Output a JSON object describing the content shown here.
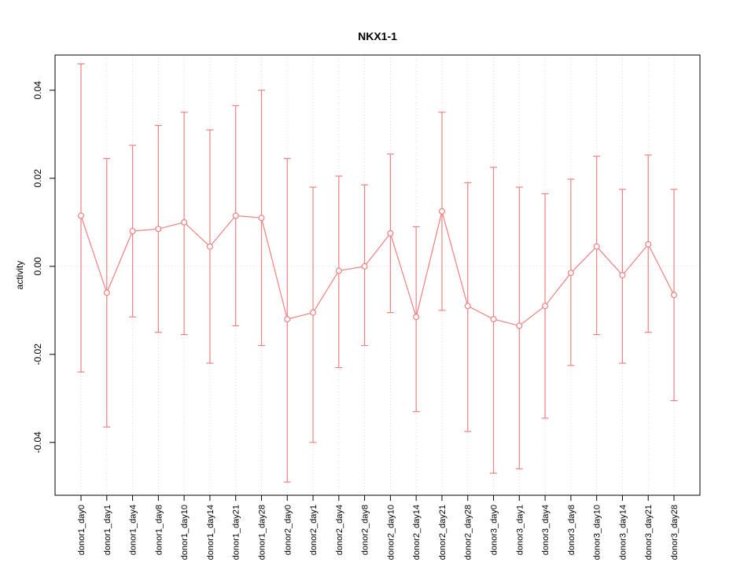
{
  "chart_data": {
    "type": "line",
    "title": "NKX1-1",
    "xlabel": "",
    "ylabel": "activity",
    "ylim": [
      -0.052,
      0.048
    ],
    "yticks": [
      -0.04,
      -0.02,
      0.0,
      0.02,
      0.04
    ],
    "legend": "none",
    "grid": "dotted vertical gridline at each category; dotted horizontal line at y=0",
    "marker": "open-circle",
    "error_bars": true,
    "colors": {
      "series": "#f08080",
      "grid": "#d9d9d9",
      "axis": "#000000",
      "background": "#ffffff"
    },
    "categories": [
      "donor1_day0",
      "donor1_day1",
      "donor1_day4",
      "donor1_day8",
      "donor1_day10",
      "donor1_day14",
      "donor1_day21",
      "donor1_day28",
      "donor2_day0",
      "donor2_day1",
      "donor2_day4",
      "donor2_day8",
      "donor2_day10",
      "donor2_day14",
      "donor2_day21",
      "donor2_day28",
      "donor3_day0",
      "donor3_day1",
      "donor3_day4",
      "donor3_day8",
      "donor3_day10",
      "donor3_day14",
      "donor3_day21",
      "donor3_day28"
    ],
    "series": [
      {
        "name": "activity",
        "means": [
          0.0115,
          -0.006,
          0.008,
          0.0085,
          0.01,
          0.0045,
          0.0115,
          0.011,
          -0.012,
          -0.0105,
          -0.001,
          0.0,
          0.0075,
          -0.0115,
          0.0125,
          -0.009,
          -0.012,
          -0.0135,
          -0.009,
          -0.0015,
          0.0045,
          -0.002,
          0.005,
          -0.0065
        ],
        "upper": [
          0.046,
          0.0245,
          0.0275,
          0.032,
          0.035,
          0.031,
          0.0365,
          0.04,
          0.0245,
          0.018,
          0.0205,
          0.0185,
          0.0255,
          0.009,
          0.035,
          0.019,
          0.0225,
          0.018,
          0.0165,
          0.0198,
          0.025,
          0.0175,
          0.0253,
          0.0175
        ],
        "lower": [
          -0.024,
          -0.0365,
          -0.0115,
          -0.015,
          -0.0155,
          -0.022,
          -0.0135,
          -0.018,
          -0.049,
          -0.04,
          -0.023,
          -0.018,
          -0.0105,
          -0.033,
          -0.01,
          -0.0375,
          -0.047,
          -0.046,
          -0.0345,
          -0.0225,
          -0.0155,
          -0.022,
          -0.015,
          -0.0305
        ]
      }
    ]
  }
}
